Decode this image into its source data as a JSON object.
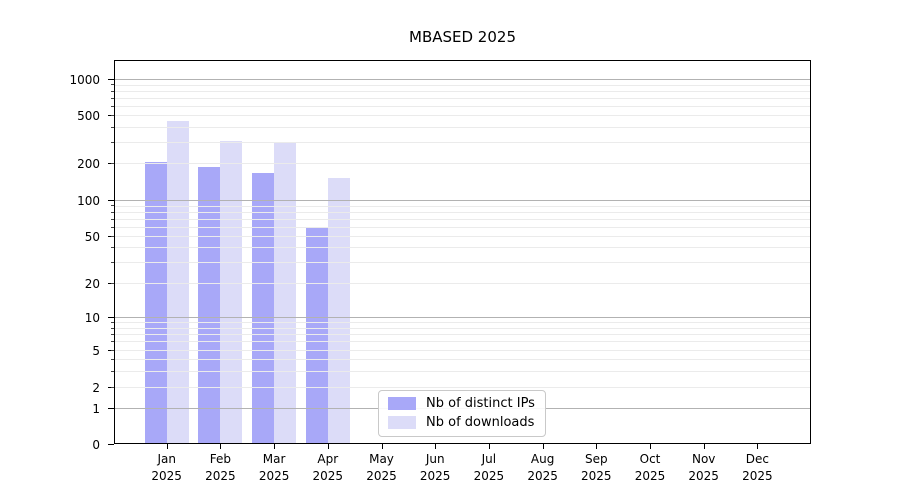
{
  "chart_data": {
    "type": "bar",
    "title": "MBASED 2025",
    "yscale": "symlog",
    "ylim": [
      0,
      1450
    ],
    "grid": true,
    "legend_position": "lower center",
    "year_label": "2025",
    "categories": [
      "Jan",
      "Feb",
      "Mar",
      "Apr",
      "May",
      "Jun",
      "Jul",
      "Aug",
      "Sep",
      "Oct",
      "Nov",
      "Dec"
    ],
    "yticks": [
      0,
      1,
      2,
      5,
      10,
      20,
      50,
      100,
      200,
      500,
      1000
    ],
    "series": [
      {
        "name": "Nb of distinct IPs",
        "color": "#a8a8f8",
        "values": [
          205,
          185,
          165,
          60,
          null,
          null,
          null,
          null,
          null,
          null,
          null,
          null
        ]
      },
      {
        "name": "Nb of downloads",
        "color": "#dcdcf8",
        "values": [
          450,
          305,
          300,
          150,
          null,
          null,
          null,
          null,
          null,
          null,
          null,
          null
        ]
      }
    ],
    "colors": {
      "major_grid": "#b2b2b2",
      "minor_grid": "#ebebeb",
      "spine": "#000000"
    }
  }
}
